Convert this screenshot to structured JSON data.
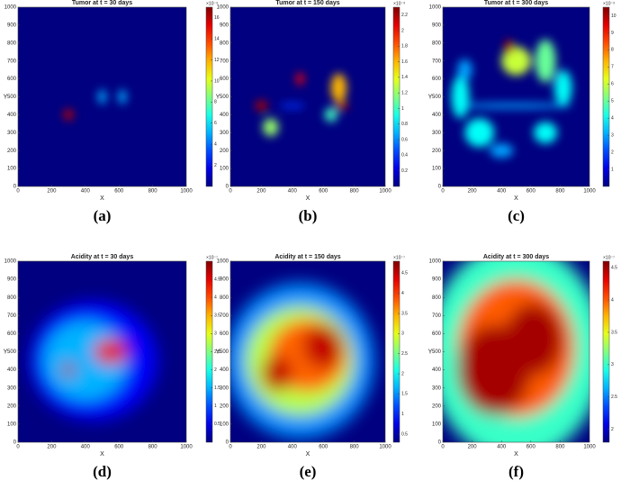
{
  "chart_data": [
    {
      "type": "heatmap",
      "title": "Tumor at t = 30 days",
      "caption": "(a)",
      "xlabel": "X",
      "ylabel": "Y",
      "xlim": [
        0,
        1000
      ],
      "ylim": [
        0,
        1000
      ],
      "xticks": [
        0,
        200,
        400,
        600,
        800,
        1000
      ],
      "yticks": [
        0,
        100,
        200,
        300,
        400,
        500,
        600,
        700,
        800,
        900,
        1000
      ],
      "colorbar": {
        "label": "×10⁻³",
        "lim": [
          0,
          17
        ],
        "ticks": [
          2,
          4,
          6,
          8,
          10,
          12,
          14,
          16
        ]
      },
      "blobs": [
        {
          "x": 300,
          "y": 400,
          "rx": 30,
          "ry": 30,
          "value": 16
        },
        {
          "x": 500,
          "y": 500,
          "rx": 25,
          "ry": 40,
          "value": 5
        },
        {
          "x": 620,
          "y": 500,
          "rx": 25,
          "ry": 40,
          "value": 5
        }
      ]
    },
    {
      "type": "heatmap",
      "title": "Tumor at t = 150 days",
      "caption": "(b)",
      "xlabel": "X",
      "ylabel": "Y",
      "xlim": [
        0,
        1000
      ],
      "ylim": [
        0,
        1000
      ],
      "xticks": [
        0,
        200,
        400,
        600,
        800,
        1000
      ],
      "yticks": [
        0,
        100,
        200,
        300,
        400,
        500,
        600,
        700,
        800,
        900,
        1000
      ],
      "colorbar": {
        "label": "×10⁻³",
        "lim": [
          0,
          2.3
        ],
        "ticks": [
          0.2,
          0.4,
          0.6,
          0.8,
          1,
          1.2,
          1.4,
          1.6,
          1.8,
          2,
          2.2
        ]
      },
      "blobs": [
        {
          "x": 400,
          "y": 450,
          "rx": 80,
          "ry": 15,
          "value": 0.4
        },
        {
          "x": 260,
          "y": 330,
          "rx": 50,
          "ry": 50,
          "value": 1.2
        },
        {
          "x": 200,
          "y": 450,
          "rx": 40,
          "ry": 30,
          "value": 2.2
        },
        {
          "x": 450,
          "y": 600,
          "rx": 25,
          "ry": 35,
          "value": 2
        },
        {
          "x": 650,
          "y": 400,
          "rx": 40,
          "ry": 40,
          "value": 1
        },
        {
          "x": 700,
          "y": 550,
          "rx": 50,
          "ry": 80,
          "value": 1.6
        },
        {
          "x": 720,
          "y": 450,
          "rx": 40,
          "ry": 25,
          "value": 2.2
        }
      ]
    },
    {
      "type": "heatmap",
      "title": "Tumor at t = 300 days",
      "caption": "(c)",
      "xlabel": "X",
      "ylabel": "Y",
      "xlim": [
        0,
        1000
      ],
      "ylim": [
        0,
        1000
      ],
      "xticks": [
        0,
        200,
        400,
        600,
        800,
        1000
      ],
      "yticks": [
        0,
        100,
        200,
        300,
        400,
        500,
        600,
        700,
        800,
        900,
        1000
      ],
      "colorbar": {
        "label": "×10⁻³",
        "lim": [
          0,
          10.5
        ],
        "ticks": [
          1,
          2,
          3,
          4,
          5,
          6,
          7,
          8,
          9,
          10
        ]
      },
      "blobs": [
        {
          "x": 480,
          "y": 450,
          "rx": 400,
          "ry": 15,
          "value": 3
        },
        {
          "x": 120,
          "y": 500,
          "rx": 60,
          "ry": 120,
          "value": 4
        },
        {
          "x": 250,
          "y": 300,
          "rx": 100,
          "ry": 80,
          "value": 4
        },
        {
          "x": 400,
          "y": 200,
          "rx": 80,
          "ry": 40,
          "value": 3
        },
        {
          "x": 150,
          "y": 650,
          "rx": 50,
          "ry": 60,
          "value": 3
        },
        {
          "x": 700,
          "y": 300,
          "rx": 80,
          "ry": 60,
          "value": 4
        },
        {
          "x": 820,
          "y": 550,
          "rx": 60,
          "ry": 100,
          "value": 4
        },
        {
          "x": 700,
          "y": 700,
          "rx": 70,
          "ry": 120,
          "value": 5
        },
        {
          "x": 500,
          "y": 700,
          "rx": 100,
          "ry": 80,
          "value": 6
        },
        {
          "x": 450,
          "y": 780,
          "rx": 30,
          "ry": 40,
          "value": 10
        }
      ]
    },
    {
      "type": "heatmap",
      "title": "Acidity at t = 30 days",
      "caption": "(d)",
      "xlabel": "X",
      "ylabel": "Y",
      "xlim": [
        0,
        1000
      ],
      "ylim": [
        0,
        1000
      ],
      "xticks": [
        0,
        200,
        400,
        600,
        800,
        1000
      ],
      "yticks": [
        0,
        100,
        200,
        300,
        400,
        500,
        600,
        700,
        800,
        900,
        1000
      ],
      "colorbar": {
        "label": "×10⁻⁷",
        "lim": [
          0,
          5
        ],
        "ticks": [
          0.5,
          1,
          1.5,
          2,
          2.5,
          3,
          3.5,
          4,
          4.5
        ]
      },
      "blobs": [
        {
          "x": 450,
          "y": 450,
          "rx": 380,
          "ry": 330,
          "value": 0.6
        },
        {
          "x": 400,
          "y": 450,
          "rx": 250,
          "ry": 220,
          "value": 1.5
        },
        {
          "x": 550,
          "y": 500,
          "rx": 100,
          "ry": 70,
          "value": 4.5
        },
        {
          "x": 300,
          "y": 400,
          "rx": 40,
          "ry": 40,
          "value": 4.8
        }
      ]
    },
    {
      "type": "heatmap",
      "title": "Acidity at t = 150 days",
      "caption": "(e)",
      "xlabel": "X",
      "ylabel": "Y",
      "xlim": [
        0,
        1000
      ],
      "ylim": [
        0,
        1000
      ],
      "xticks": [
        0,
        200,
        400,
        600,
        800,
        1000
      ],
      "yticks": [
        0,
        100,
        200,
        300,
        400,
        500,
        600,
        700,
        800,
        900,
        1000
      ],
      "colorbar": {
        "label": "×10⁻⁷",
        "lim": [
          0.3,
          4.8
        ],
        "ticks": [
          0.5,
          1,
          1.5,
          2,
          2.5,
          3,
          3.5,
          4,
          4.5
        ]
      },
      "blobs": [
        {
          "x": 450,
          "y": 450,
          "rx": 480,
          "ry": 430,
          "value": 1.5
        },
        {
          "x": 450,
          "y": 450,
          "rx": 350,
          "ry": 300,
          "value": 2.8
        },
        {
          "x": 500,
          "y": 480,
          "rx": 250,
          "ry": 200,
          "value": 3.8
        },
        {
          "x": 300,
          "y": 380,
          "rx": 100,
          "ry": 100,
          "value": 4.5
        },
        {
          "x": 600,
          "y": 530,
          "rx": 130,
          "ry": 120,
          "value": 4.5
        }
      ]
    },
    {
      "type": "heatmap",
      "title": "Acidity at t = 300 days",
      "caption": "(f)",
      "xlabel": "X",
      "ylabel": "Y",
      "xlim": [
        0,
        1000
      ],
      "ylim": [
        0,
        1000
      ],
      "xticks": [
        0,
        200,
        400,
        600,
        800,
        1000
      ],
      "yticks": [
        0,
        100,
        200,
        300,
        400,
        500,
        600,
        700,
        800,
        900,
        1000
      ],
      "colorbar": {
        "label": "×10⁻⁷",
        "lim": [
          1.8,
          4.6
        ],
        "ticks": [
          2,
          2.5,
          3,
          3.5,
          4,
          4.5
        ]
      },
      "blobs": [
        {
          "x": 500,
          "y": 500,
          "rx": 600,
          "ry": 600,
          "value": 3
        },
        {
          "x": 500,
          "y": 520,
          "rx": 400,
          "ry": 380,
          "value": 4
        },
        {
          "x": 350,
          "y": 400,
          "rx": 250,
          "ry": 250,
          "value": 4.5
        },
        {
          "x": 620,
          "y": 570,
          "rx": 200,
          "ry": 200,
          "value": 4.5
        }
      ]
    }
  ]
}
